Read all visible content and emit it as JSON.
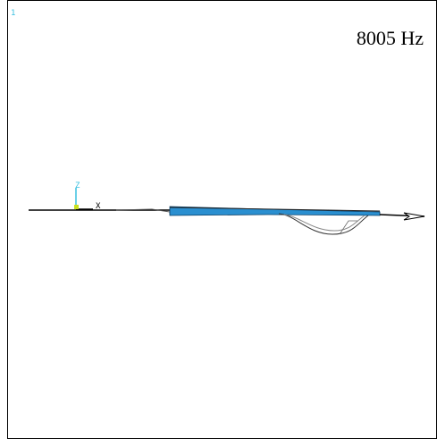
{
  "window_number": "1",
  "frequency_label": "8005 Hz",
  "axes": {
    "z": "Z",
    "x": "X"
  }
}
